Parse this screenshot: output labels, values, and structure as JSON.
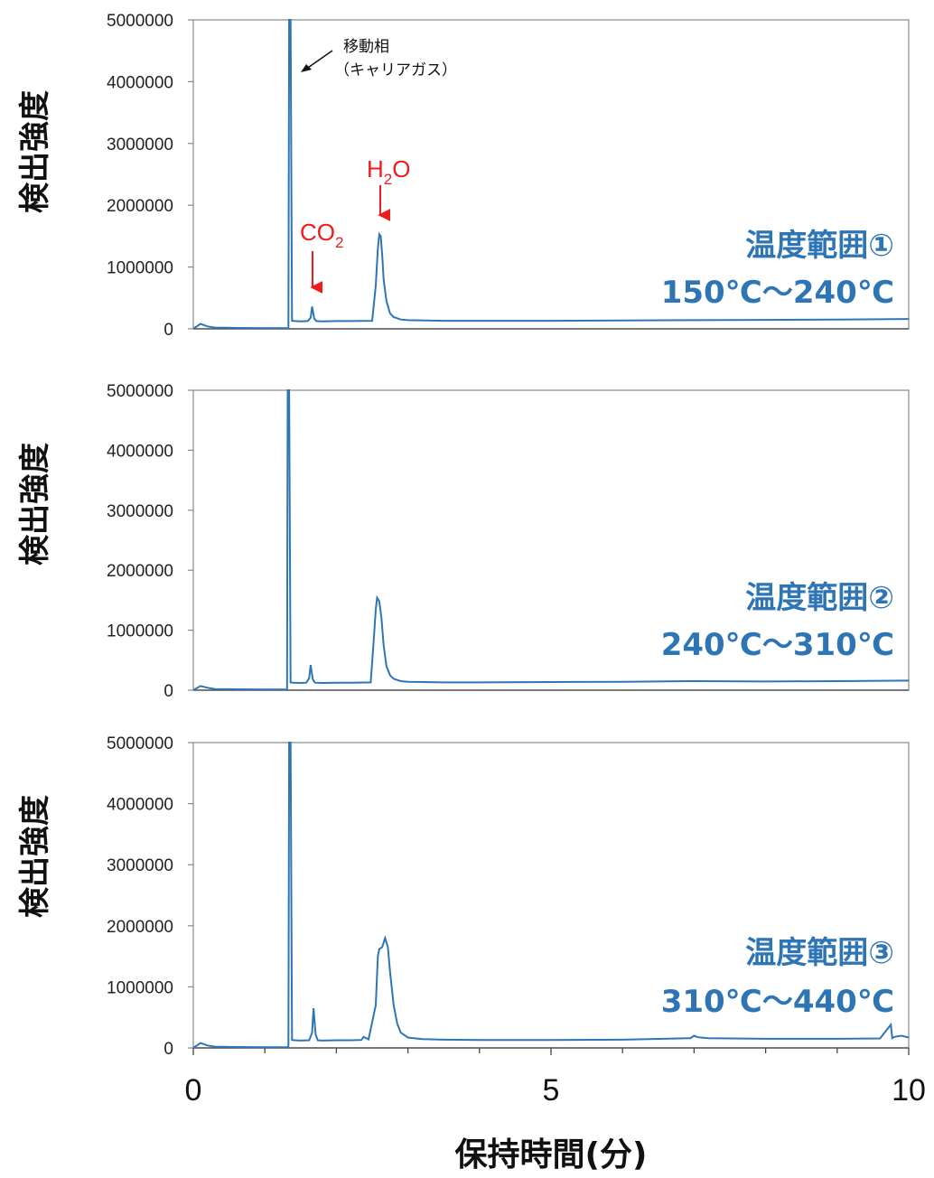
{
  "chart_data": [
    {
      "type": "line",
      "panel": 1,
      "ylabel": "検出強度",
      "ylim": [
        0,
        5000000
      ],
      "yticks": [
        "0",
        "1000000",
        "2000000",
        "3000000",
        "4000000",
        "5000000"
      ],
      "xlim": [
        0,
        10
      ],
      "range_label_1": "温度範囲①",
      "range_label_2": "150℃～240℃",
      "annotations": {
        "carrier_1": "移動相",
        "carrier_2": "（キャリアガス）",
        "co2_main": "CO",
        "co2_sub": "2",
        "h2o_h": "H",
        "h2o_sub": "2",
        "h2o_o": "O"
      },
      "series": [
        {
          "color": "#2e75b6",
          "x": [
            0.0,
            0.1,
            0.2,
            0.3,
            0.6,
            1.0,
            1.3,
            1.33,
            1.34,
            1.36,
            1.38,
            1.42,
            1.5,
            1.6,
            1.64,
            1.66,
            1.69,
            1.72,
            1.8,
            2.0,
            2.2,
            2.5,
            2.55,
            2.58,
            2.6,
            2.62,
            2.64,
            2.66,
            2.7,
            2.75,
            2.8,
            2.9,
            3.0,
            3.5,
            4.0,
            5.0,
            6.0,
            7.0,
            8.0,
            9.0,
            10.0
          ],
          "y": [
            0,
            80000,
            40000,
            20000,
            15000,
            12000,
            12000,
            12000,
            5000000,
            5000000,
            130000,
            125000,
            120000,
            125000,
            180000,
            360000,
            170000,
            125000,
            120000,
            125000,
            125000,
            130000,
            700000,
            1300000,
            1530000,
            1500000,
            1200000,
            800000,
            450000,
            250000,
            190000,
            150000,
            140000,
            130000,
            130000,
            130000,
            135000,
            140000,
            145000,
            150000,
            160000
          ]
        }
      ]
    },
    {
      "type": "line",
      "panel": 2,
      "ylabel": "検出強度",
      "ylim": [
        0,
        5000000
      ],
      "yticks": [
        "0",
        "1000000",
        "2000000",
        "3000000",
        "4000000",
        "5000000"
      ],
      "xlim": [
        0,
        10
      ],
      "range_label_1": "温度範囲②",
      "range_label_2": "240℃～310℃",
      "series": [
        {
          "color": "#2e75b6",
          "x": [
            0.0,
            0.1,
            0.2,
            0.3,
            0.6,
            1.0,
            1.3,
            1.31,
            1.32,
            1.34,
            1.36,
            1.4,
            1.5,
            1.58,
            1.62,
            1.64,
            1.67,
            1.7,
            1.8,
            2.0,
            2.2,
            2.48,
            2.52,
            2.55,
            2.57,
            2.6,
            2.63,
            2.66,
            2.7,
            2.75,
            2.8,
            2.9,
            3.0,
            3.5,
            4.0,
            5.0,
            6.0,
            7.0,
            8.0,
            9.0,
            10.0
          ],
          "y": [
            0,
            70000,
            40000,
            20000,
            15000,
            12000,
            12000,
            12000,
            5000000,
            5000000,
            130000,
            125000,
            120000,
            125000,
            200000,
            420000,
            180000,
            125000,
            120000,
            125000,
            125000,
            130000,
            800000,
            1350000,
            1540000,
            1480000,
            1200000,
            750000,
            400000,
            250000,
            190000,
            150000,
            140000,
            130000,
            130000,
            135000,
            140000,
            150000,
            145000,
            150000,
            160000
          ]
        }
      ]
    },
    {
      "type": "line",
      "panel": 3,
      "ylabel": "検出強度",
      "ylim": [
        0,
        5000000
      ],
      "yticks": [
        "0",
        "1000000",
        "2000000",
        "3000000",
        "4000000",
        "5000000"
      ],
      "xlim": [
        0,
        10
      ],
      "xticks": [
        "0",
        "5",
        "10"
      ],
      "xlabel": "保持時間(分)",
      "range_label_1": "温度範囲③",
      "range_label_2": "310℃～440℃",
      "series": [
        {
          "color": "#2e75b6",
          "x": [
            0.0,
            0.1,
            0.2,
            0.3,
            0.6,
            1.0,
            1.3,
            1.33,
            1.34,
            1.36,
            1.38,
            1.42,
            1.5,
            1.62,
            1.66,
            1.68,
            1.71,
            1.74,
            1.8,
            2.0,
            2.2,
            2.35,
            2.38,
            2.45,
            2.55,
            2.58,
            2.6,
            2.64,
            2.68,
            2.72,
            2.75,
            2.8,
            2.85,
            2.9,
            3.0,
            3.2,
            3.5,
            4.0,
            5.0,
            6.0,
            6.95,
            7.0,
            7.05,
            7.2,
            8.0,
            9.0,
            9.6,
            9.75,
            9.77,
            9.8,
            9.9,
            10.0
          ],
          "y": [
            0,
            80000,
            40000,
            20000,
            15000,
            12000,
            12000,
            12000,
            5000000,
            5000000,
            130000,
            125000,
            120000,
            125000,
            250000,
            650000,
            220000,
            125000,
            120000,
            125000,
            125000,
            130000,
            180000,
            140000,
            700000,
            1500000,
            1620000,
            1650000,
            1800000,
            1650000,
            1250000,
            700000,
            400000,
            250000,
            170000,
            145000,
            135000,
            130000,
            130000,
            135000,
            160000,
            200000,
            175000,
            160000,
            150000,
            150000,
            155000,
            380000,
            160000,
            180000,
            200000,
            170000
          ]
        }
      ]
    }
  ]
}
